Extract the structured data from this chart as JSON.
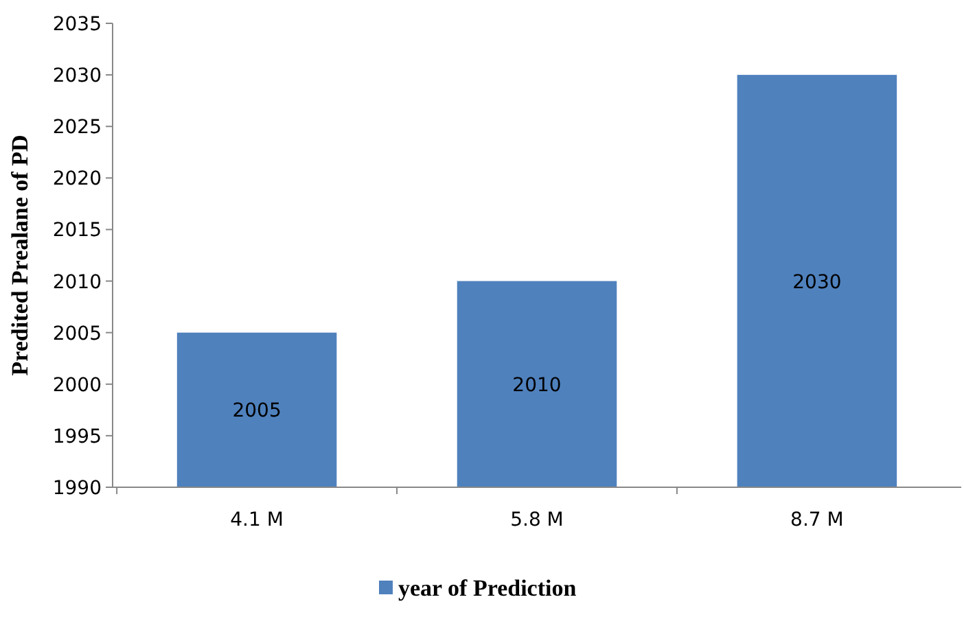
{
  "chart_data": {
    "type": "bar",
    "ylabel": "Predited Prealane of PD",
    "categories": [
      "4.1 M",
      "5.8 M",
      "8.7 M"
    ],
    "series": [
      {
        "name": "year of Prediction",
        "color": "#4f81bd",
        "values": [
          2005,
          2010,
          2030
        ]
      }
    ],
    "ylim": [
      1990,
      2035
    ],
    "yticks": [
      1990,
      1995,
      2000,
      2005,
      2010,
      2015,
      2020,
      2025,
      2030,
      2035
    ],
    "data_labels": true,
    "legend": "bottom",
    "grid": false
  }
}
